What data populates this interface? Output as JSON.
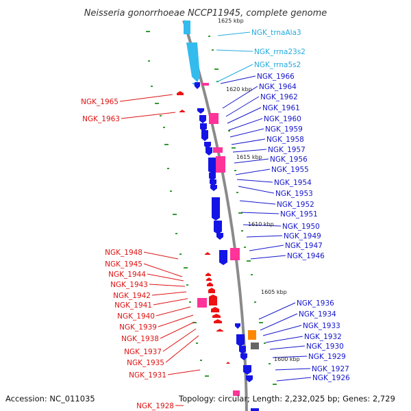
{
  "title": "Neisseria gonorrhoeae NCCP11945, complete genome",
  "footer": {
    "accession": "Accession: NC_011035",
    "topology": "Topology: circular; Length: 2,232,025 bp; Genes: 2,729"
  },
  "colors": {
    "backbone": "#8a8a8a",
    "rna": "#33bbee",
    "gene_fwd": "#1414e6",
    "gene_rev": "#ee1111",
    "pseudo": "#ff3399",
    "other": "#ff8800",
    "gray_feature": "#666666",
    "gc_dot": "#339933",
    "label_rna": "#22aadd",
    "label_fwd": "#1414cc",
    "label_rev": "#dd1111"
  },
  "kbp_ticks": [
    "1625 kbp",
    "1620 kbp",
    "1615 kbp",
    "1610 kbp",
    "1605 kbp",
    "1600 kbp"
  ],
  "rna_labels": [
    "NGK_trnaAla3",
    "NGK_rrna23s2",
    "NGK_rrna5s2"
  ],
  "fwd_labels": [
    "NGK_1966",
    "NGK_1964",
    "NGK_1962",
    "NGK_1961",
    "NGK_1960",
    "NGK_1959",
    "NGK_1958",
    "NGK_1957",
    "NGK_1956",
    "NGK_1955",
    "NGK_1954",
    "NGK_1953",
    "NGK_1952",
    "NGK_1951",
    "NGK_1950",
    "NGK_1949",
    "NGK_1947",
    "NGK_1946",
    "NGK_1936",
    "NGK_1934",
    "NGK_1933",
    "NGK_1932",
    "NGK_1930",
    "NGK_1929",
    "NGK_1927",
    "NGK_1926"
  ],
  "rev_labels": [
    "NGK_1965",
    "NGK_1963",
    "NGK_1948",
    "NGK_1945",
    "NGK_1944",
    "NGK_1943",
    "NGK_1942",
    "NGK_1941",
    "NGK_1940",
    "NGK_1939",
    "NGK_1938",
    "NGK_1937",
    "NGK_1935",
    "NGK_1931",
    "NGK_1928"
  ]
}
